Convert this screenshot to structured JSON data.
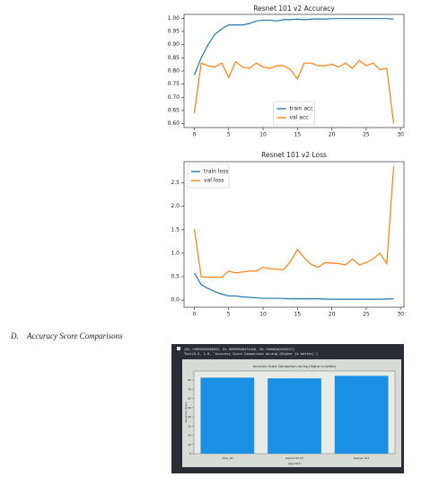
{
  "chart_data": [
    {
      "type": "line",
      "title": "Resnet 101 v2 Accuracy",
      "x": [
        0,
        1,
        2,
        3,
        4,
        5,
        6,
        7,
        8,
        9,
        10,
        11,
        12,
        13,
        14,
        15,
        16,
        17,
        18,
        19,
        20,
        21,
        22,
        23,
        24,
        25,
        26,
        27,
        28,
        29
      ],
      "series": [
        {
          "name": "train acc",
          "color": "#1f77b4",
          "values": [
            0.785,
            0.85,
            0.9,
            0.94,
            0.96,
            0.975,
            0.975,
            0.975,
            0.98,
            0.99,
            0.993,
            0.993,
            0.99,
            0.995,
            0.995,
            0.997,
            0.995,
            0.997,
            0.998,
            0.997,
            0.999,
            0.999,
            0.999,
            0.999,
            0.999,
            0.999,
            0.999,
            0.999,
            0.999,
            0.997
          ]
        },
        {
          "name": "val acc",
          "color": "#ff7f0e",
          "values": [
            0.64,
            0.83,
            0.82,
            0.815,
            0.83,
            0.775,
            0.835,
            0.815,
            0.81,
            0.83,
            0.815,
            0.81,
            0.82,
            0.82,
            0.805,
            0.77,
            0.83,
            0.83,
            0.82,
            0.82,
            0.825,
            0.815,
            0.83,
            0.81,
            0.84,
            0.82,
            0.83,
            0.805,
            0.81,
            0.6
          ]
        }
      ],
      "xlim": [
        -1.5,
        30.5
      ],
      "xticks": [
        0,
        5,
        10,
        15,
        20,
        25,
        30
      ],
      "ylim": [
        0.585,
        1.015
      ],
      "yticks": [
        {
          "value": 0.6,
          "label": "0.60"
        },
        0.65,
        {
          "value": 0.7,
          "label": "0.70"
        },
        0.75,
        {
          "value": 0.8,
          "label": "0.80"
        },
        0.85,
        {
          "value": 0.9,
          "label": "0.90"
        },
        0.95,
        {
          "value": 1,
          "label": "1.00"
        }
      ],
      "legend": "lower center"
    },
    {
      "type": "line",
      "title": "Resnet 101 v2 Loss",
      "x": [
        0,
        1,
        2,
        3,
        4,
        5,
        6,
        7,
        8,
        9,
        10,
        11,
        12,
        13,
        14,
        15,
        16,
        17,
        18,
        19,
        20,
        21,
        22,
        23,
        24,
        25,
        26,
        27,
        28,
        29
      ],
      "series": [
        {
          "name": "train loss",
          "color": "#1f77b4",
          "values": [
            0.58,
            0.33,
            0.25,
            0.18,
            0.13,
            0.09,
            0.09,
            0.07,
            0.06,
            0.05,
            0.04,
            0.04,
            0.04,
            0.035,
            0.03,
            0.03,
            0.03,
            0.03,
            0.03,
            0.025,
            0.02,
            0.02,
            0.02,
            0.02,
            0.02,
            0.02,
            0.02,
            0.02,
            0.025,
            0.03
          ]
        },
        {
          "name": "val loss",
          "color": "#ff7f0e",
          "values": [
            1.52,
            0.5,
            0.49,
            0.49,
            0.49,
            0.62,
            0.58,
            0.6,
            0.62,
            0.62,
            0.7,
            0.67,
            0.66,
            0.65,
            0.83,
            1.08,
            0.9,
            0.76,
            0.7,
            0.8,
            0.79,
            0.78,
            0.75,
            0.88,
            0.75,
            0.8,
            0.88,
            1.0,
            0.78,
            2.85
          ]
        }
      ],
      "xlim": [
        -1.5,
        30.5
      ],
      "xticks": [
        0,
        5,
        10,
        15,
        20,
        25,
        30
      ],
      "ylim": [
        -0.15,
        2.95
      ],
      "yticks": [
        {
          "value": 0,
          "label": "0.0"
        },
        0.5,
        {
          "value": 1,
          "label": "1.0"
        },
        1.5,
        {
          "value": 2,
          "label": "2.0"
        },
        2.5
      ],
      "legend": "upper left"
    },
    {
      "type": "bar",
      "title": "Accuracy Score Comparison during (Higher is better)",
      "console_lines": [
        "[82.74999856948853, 81.99999928474426, 84.75000262203217]",
        "Text(0.5, 1.0, 'Accuracy Score Comparison during (Higher is better)')"
      ],
      "categories": [
        "VGG_16",
        "Resnet 50 V2",
        "Resnet 101"
      ],
      "values": [
        82.74999856948853,
        81.99999928474426,
        84.75000262203217
      ],
      "color": "#1a8fe3",
      "xlabel": "Algorithm",
      "ylabel": "Accuracy Score",
      "ylim": [
        0,
        90
      ],
      "yticks": [
        0,
        10,
        20,
        30,
        40,
        50,
        60,
        70,
        80
      ]
    }
  ],
  "section": {
    "label": "D.",
    "title": "Accuracy Score Comparisons"
  }
}
